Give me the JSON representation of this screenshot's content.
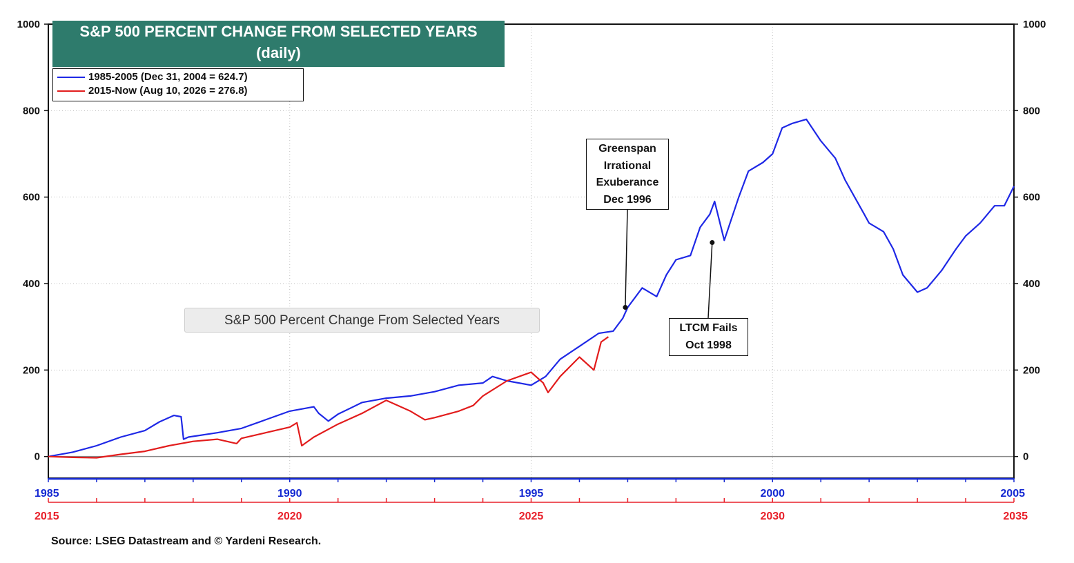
{
  "chart_data": {
    "type": "line",
    "title": "S&P 500 PERCENT CHANGE FROM SELECTED YEARS",
    "subtitle": "(daily)",
    "ylim": [
      -50,
      1000
    ],
    "yticks": [
      0,
      200,
      400,
      600,
      800,
      1000
    ],
    "x_axis_primary": {
      "range": [
        1985,
        2005
      ],
      "ticks": [
        1985,
        1990,
        1995,
        2000,
        2005
      ],
      "color": "#1428d2"
    },
    "x_axis_secondary": {
      "range": [
        2015,
        2035
      ],
      "ticks": [
        2015,
        2020,
        2025,
        2030,
        2035
      ],
      "color": "#e8202a"
    },
    "grid": true,
    "legend_placement": "top-left",
    "series": [
      {
        "name": "1985-2005 (Dec 31, 2004 = 624.7)",
        "color": "#1e28e6",
        "x": [
          1985.0,
          1985.5,
          1986.0,
          1986.5,
          1987.0,
          1987.3,
          1987.6,
          1987.75,
          1987.8,
          1987.9,
          1988.5,
          1989.0,
          1989.5,
          1990.0,
          1990.5,
          1990.6,
          1990.8,
          1991.0,
          1991.5,
          1992.0,
          1992.5,
          1993.0,
          1993.5,
          1994.0,
          1994.2,
          1994.5,
          1995.0,
          1995.3,
          1995.6,
          1996.0,
          1996.4,
          1996.7,
          1996.9,
          1997.0,
          1997.3,
          1997.6,
          1997.8,
          1998.0,
          1998.3,
          1998.5,
          1998.7,
          1998.8,
          1999.0,
          1999.3,
          1999.5,
          1999.8,
          2000.0,
          2000.2,
          2000.4,
          2000.7,
          2001.0,
          2001.3,
          2001.5,
          2001.7,
          2001.9,
          2002.0,
          2002.3,
          2002.5,
          2002.7,
          2003.0,
          2003.2,
          2003.5,
          2003.8,
          2004.0,
          2004.3,
          2004.6,
          2004.8,
          2005.0
        ],
        "values": [
          0,
          10,
          25,
          45,
          60,
          80,
          95,
          92,
          40,
          45,
          55,
          65,
          85,
          105,
          115,
          100,
          82,
          98,
          125,
          135,
          140,
          150,
          165,
          170,
          185,
          175,
          165,
          185,
          225,
          255,
          285,
          290,
          320,
          345,
          390,
          370,
          420,
          455,
          465,
          530,
          560,
          590,
          500,
          600,
          660,
          680,
          700,
          760,
          770,
          780,
          730,
          690,
          640,
          600,
          560,
          540,
          520,
          480,
          420,
          380,
          390,
          430,
          480,
          510,
          540,
          580,
          580,
          625
        ]
      },
      {
        "name": "2015-Now (Aug 10, 2026 = 276.8)",
        "color": "#e21c1c",
        "x": [
          2015.0,
          2015.5,
          2016.0,
          2016.5,
          2017.0,
          2017.5,
          2018.0,
          2018.5,
          2018.9,
          2019.0,
          2019.5,
          2020.0,
          2020.15,
          2020.25,
          2020.5,
          2021.0,
          2021.5,
          2022.0,
          2022.5,
          2022.8,
          2023.0,
          2023.5,
          2023.8,
          2024.0,
          2024.5,
          2025.0,
          2025.25,
          2025.35,
          2025.6,
          2026.0,
          2026.3,
          2026.45,
          2026.6
        ],
        "values": [
          0,
          -2,
          -3,
          5,
          12,
          25,
          35,
          40,
          30,
          42,
          55,
          68,
          78,
          25,
          45,
          75,
          100,
          130,
          105,
          85,
          90,
          105,
          118,
          140,
          175,
          195,
          170,
          148,
          185,
          230,
          200,
          265,
          276.8
        ]
      }
    ],
    "annotations": [
      {
        "lines": [
          "Greenspan",
          "Irrational",
          "Exuberance",
          "Dec 1996"
        ],
        "x": 1996.95,
        "y": 345
      },
      {
        "lines": [
          "LTCM Fails",
          "Oct 1998"
        ],
        "x": 1998.75,
        "y": 495
      }
    ],
    "tooltip": "S&P 500 Percent Change From Selected Years",
    "source": "Source: LSEG Datastream and © Yardeni Research.",
    "colors": {
      "title_bg": "#2e7b6c",
      "zero_line": "#888888",
      "grid": "#bfbfbf"
    }
  }
}
